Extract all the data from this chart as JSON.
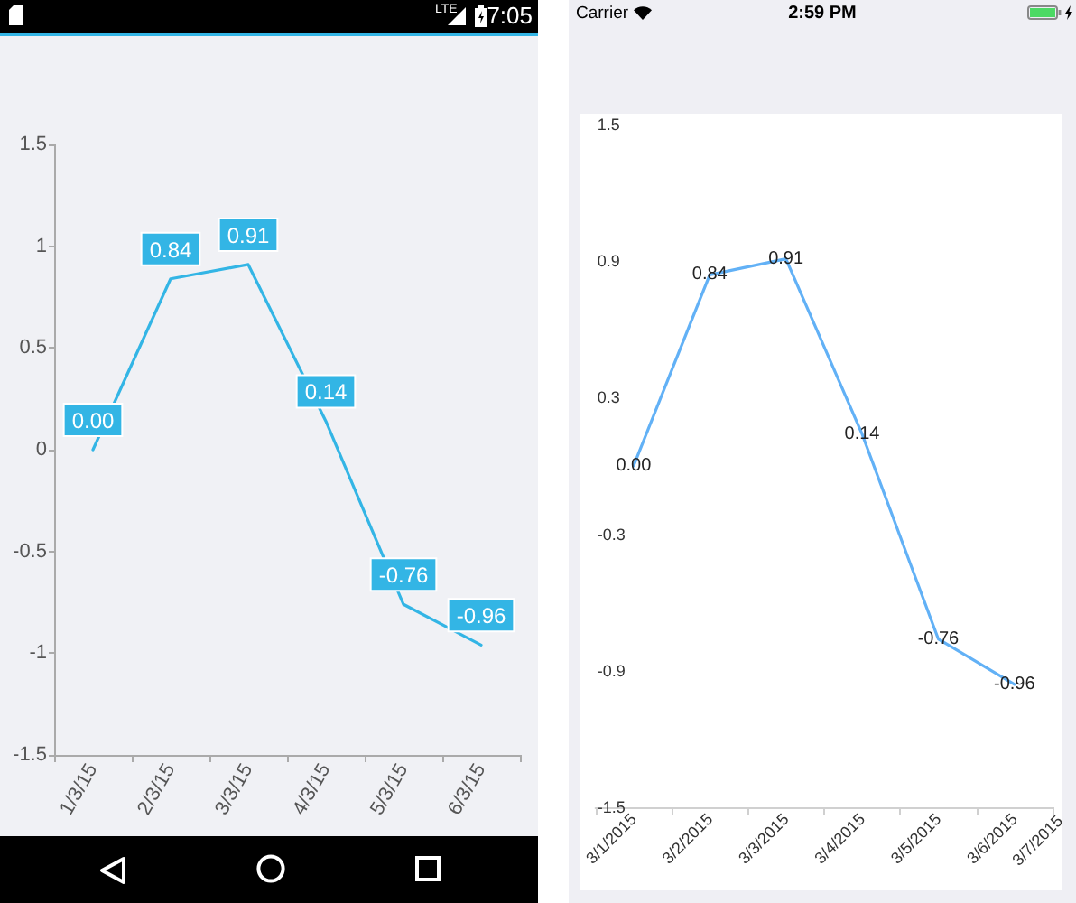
{
  "chart_data": [
    {
      "type": "line",
      "categories": [
        "1/3/15",
        "2/3/15",
        "3/3/15",
        "4/3/15",
        "5/3/15",
        "6/3/15"
      ],
      "values": [
        0,
        0.84,
        0.91,
        0.14,
        -0.76,
        -0.96
      ],
      "value_labels": [
        "0.00",
        "0.84",
        "0.91",
        "0.14",
        "-0.76",
        "-0.96"
      ],
      "color": "#33b5e5",
      "ylim": [
        -1.5,
        1.5
      ],
      "yticks": [
        -1.5,
        -1,
        -0.5,
        0,
        0.5,
        1,
        1.5
      ],
      "grid": false,
      "marker": "none",
      "annotations": [
        "LTE",
        "7:05"
      ]
    },
    {
      "type": "line",
      "categories": [
        "3/1/2015",
        "3/2/2015",
        "3/3/2015",
        "3/4/2015",
        "3/5/2015",
        "3/6/2015"
      ],
      "values": [
        0,
        0.84,
        0.91,
        0.14,
        -0.76,
        -0.96
      ],
      "value_labels": [
        "0.00",
        "0.84",
        "0.91",
        "0.14",
        "-0.76",
        "-0.96"
      ],
      "color": "#62b1f6",
      "ylim": [
        -1.5,
        1.5
      ],
      "yticks": [
        -1.5,
        -0.9,
        -0.3,
        0.3,
        0.9,
        1.5
      ],
      "grid": false,
      "marker": "none",
      "annotations": [
        "Carrier",
        "2:59 PM",
        "3/7/2015"
      ]
    }
  ]
}
